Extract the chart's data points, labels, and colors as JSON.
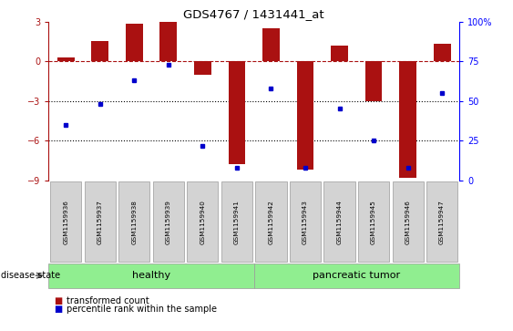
{
  "title": "GDS4767 / 1431441_at",
  "samples": [
    "GSM1159936",
    "GSM1159937",
    "GSM1159938",
    "GSM1159939",
    "GSM1159940",
    "GSM1159941",
    "GSM1159942",
    "GSM1159943",
    "GSM1159944",
    "GSM1159945",
    "GSM1159946",
    "GSM1159947"
  ],
  "transformed_count": [
    0.3,
    1.5,
    2.8,
    3.0,
    -1.0,
    -7.8,
    2.5,
    -8.2,
    1.2,
    -3.0,
    -8.8,
    1.3
  ],
  "percentile_rank": [
    35,
    48,
    63,
    73,
    22,
    8,
    58,
    8,
    45,
    25,
    8,
    55
  ],
  "bar_color": "#aa1111",
  "dot_color": "#0000cc",
  "healthy_label": "healthy",
  "tumor_label": "pancreatic tumor",
  "disease_state_label": "disease state",
  "ylim": [
    -9,
    3
  ],
  "yticks": [
    3,
    0,
    -3,
    -6,
    -9
  ],
  "right_ytick_vals": [
    100,
    75,
    50,
    25,
    0
  ],
  "right_ytick_labels": [
    "100%",
    "75",
    "50",
    "25",
    "0"
  ],
  "hline_y": 0,
  "dotted_lines": [
    -3,
    -6
  ],
  "legend_red": "transformed count",
  "legend_blue": "percentile rank within the sample",
  "healthy_bg": "#90ee90",
  "tumor_bg": "#90ee90",
  "label_box_color": "#d3d3d3",
  "bar_width": 0.5
}
